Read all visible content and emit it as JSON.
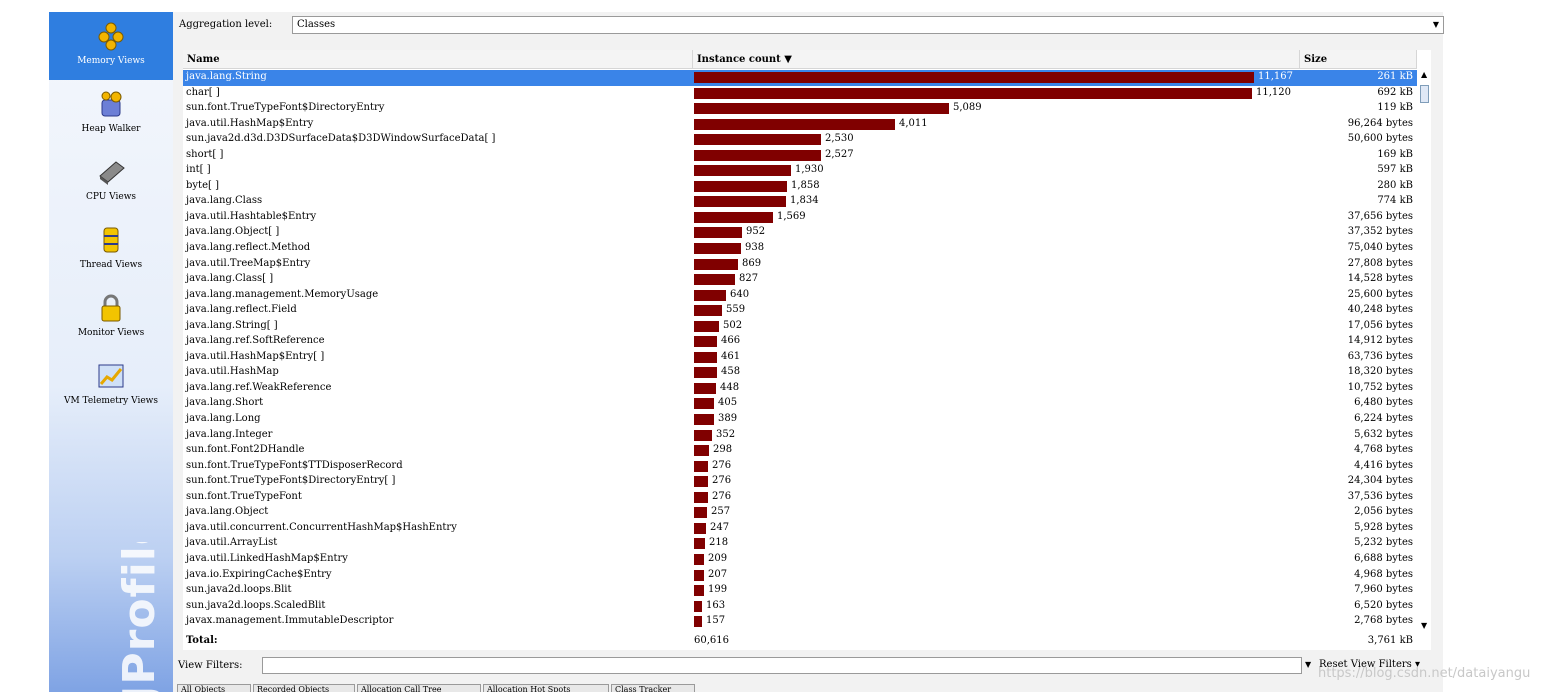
{
  "sidebar": {
    "items": [
      {
        "label": "Memory Views",
        "icon": "memory-views-icon",
        "active": true
      },
      {
        "label": "Heap Walker",
        "icon": "heap-walker-icon",
        "active": false
      },
      {
        "label": "CPU Views",
        "icon": "cpu-views-icon",
        "active": false
      },
      {
        "label": "Thread Views",
        "icon": "thread-views-icon",
        "active": false
      },
      {
        "label": "Monitor Views",
        "icon": "monitor-views-icon",
        "active": false
      },
      {
        "label": "VM Telemetry Views",
        "icon": "vm-telemetry-icon",
        "active": false
      }
    ],
    "brand": "JProfiler"
  },
  "aggregation": {
    "label": "Aggregation level:",
    "value": "Classes"
  },
  "table": {
    "columns": {
      "name": "Name",
      "count": "Instance count ▼",
      "size": "Size"
    },
    "max_count": 11167,
    "rows": [
      {
        "name": "java.lang.String",
        "count": 11167,
        "count_text": "11,167",
        "size": "261 kB",
        "selected": true
      },
      {
        "name": "char[ ]",
        "count": 11120,
        "count_text": "11,120",
        "size": "692 kB"
      },
      {
        "name": "sun.font.TrueTypeFont$DirectoryEntry",
        "count": 5089,
        "count_text": "5,089",
        "size": "119 kB"
      },
      {
        "name": "java.util.HashMap$Entry",
        "count": 4011,
        "count_text": "4,011",
        "size": "96,264 bytes"
      },
      {
        "name": "sun.java2d.d3d.D3DSurfaceData$D3DWindowSurfaceData[ ]",
        "count": 2530,
        "count_text": "2,530",
        "size": "50,600 bytes"
      },
      {
        "name": "short[ ]",
        "count": 2527,
        "count_text": "2,527",
        "size": "169 kB"
      },
      {
        "name": "int[ ]",
        "count": 1930,
        "count_text": "1,930",
        "size": "597 kB"
      },
      {
        "name": "byte[ ]",
        "count": 1858,
        "count_text": "1,858",
        "size": "280 kB"
      },
      {
        "name": "java.lang.Class",
        "count": 1834,
        "count_text": "1,834",
        "size": "774 kB"
      },
      {
        "name": "java.util.Hashtable$Entry",
        "count": 1569,
        "count_text": "1,569",
        "size": "37,656 bytes"
      },
      {
        "name": "java.lang.Object[ ]",
        "count": 952,
        "count_text": "952",
        "size": "37,352 bytes"
      },
      {
        "name": "java.lang.reflect.Method",
        "count": 938,
        "count_text": "938",
        "size": "75,040 bytes"
      },
      {
        "name": "java.util.TreeMap$Entry",
        "count": 869,
        "count_text": "869",
        "size": "27,808 bytes"
      },
      {
        "name": "java.lang.Class[ ]",
        "count": 827,
        "count_text": "827",
        "size": "14,528 bytes"
      },
      {
        "name": "java.lang.management.MemoryUsage",
        "count": 640,
        "count_text": "640",
        "size": "25,600 bytes"
      },
      {
        "name": "java.lang.reflect.Field",
        "count": 559,
        "count_text": "559",
        "size": "40,248 bytes"
      },
      {
        "name": "java.lang.String[ ]",
        "count": 502,
        "count_text": "502",
        "size": "17,056 bytes"
      },
      {
        "name": "java.lang.ref.SoftReference",
        "count": 466,
        "count_text": "466",
        "size": "14,912 bytes"
      },
      {
        "name": "java.util.HashMap$Entry[ ]",
        "count": 461,
        "count_text": "461",
        "size": "63,736 bytes"
      },
      {
        "name": "java.util.HashMap",
        "count": 458,
        "count_text": "458",
        "size": "18,320 bytes"
      },
      {
        "name": "java.lang.ref.WeakReference",
        "count": 448,
        "count_text": "448",
        "size": "10,752 bytes"
      },
      {
        "name": "java.lang.Short",
        "count": 405,
        "count_text": "405",
        "size": "6,480 bytes"
      },
      {
        "name": "java.lang.Long",
        "count": 389,
        "count_text": "389",
        "size": "6,224 bytes"
      },
      {
        "name": "java.lang.Integer",
        "count": 352,
        "count_text": "352",
        "size": "5,632 bytes"
      },
      {
        "name": "sun.font.Font2DHandle",
        "count": 298,
        "count_text": "298",
        "size": "4,768 bytes"
      },
      {
        "name": "sun.font.TrueTypeFont$TTDisposerRecord",
        "count": 276,
        "count_text": "276",
        "size": "4,416 bytes"
      },
      {
        "name": "sun.font.TrueTypeFont$DirectoryEntry[ ]",
        "count": 276,
        "count_text": "276",
        "size": "24,304 bytes"
      },
      {
        "name": "sun.font.TrueTypeFont",
        "count": 276,
        "count_text": "276",
        "size": "37,536 bytes"
      },
      {
        "name": "java.lang.Object",
        "count": 257,
        "count_text": "257",
        "size": "2,056 bytes"
      },
      {
        "name": "java.util.concurrent.ConcurrentHashMap$HashEntry",
        "count": 247,
        "count_text": "247",
        "size": "5,928 bytes"
      },
      {
        "name": "java.util.ArrayList",
        "count": 218,
        "count_text": "218",
        "size": "5,232 bytes"
      },
      {
        "name": "java.util.LinkedHashMap$Entry",
        "count": 209,
        "count_text": "209",
        "size": "6,688 bytes"
      },
      {
        "name": "java.io.ExpiringCache$Entry",
        "count": 207,
        "count_text": "207",
        "size": "4,968 bytes"
      },
      {
        "name": "sun.java2d.loops.Blit",
        "count": 199,
        "count_text": "199",
        "size": "7,960 bytes"
      },
      {
        "name": "sun.java2d.loops.ScaledBlit",
        "count": 163,
        "count_text": "163",
        "size": "6,520 bytes"
      },
      {
        "name": "javax.management.ImmutableDescriptor",
        "count": 157,
        "count_text": "157",
        "size": "2,768 bytes"
      }
    ],
    "total": {
      "label": "Total:",
      "count": "60,616",
      "size": "3,761 kB"
    }
  },
  "filter": {
    "label": "View Filters:",
    "value": "",
    "reset_label": "Reset View Filters ▾"
  },
  "tabs": [
    "All Objects",
    "Recorded Objects",
    "Allocation Call Tree",
    "Allocation Hot Spots",
    "Class Tracker"
  ],
  "watermark": "https://blog.csdn.net/dataiyangu",
  "colors": {
    "bar": "#800000",
    "selection": "#3a84e8",
    "sidebar_active": "#2f7ee0"
  }
}
